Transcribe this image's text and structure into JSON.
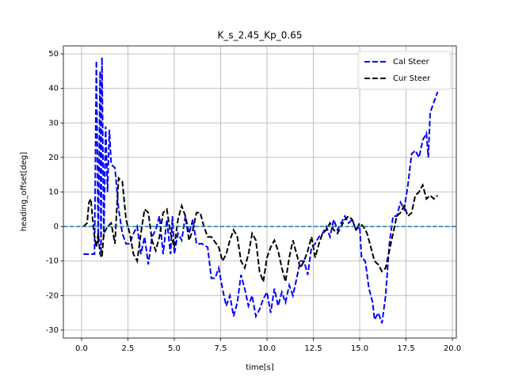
{
  "chart_data": {
    "type": "line",
    "title": "K_s_2.45_Kp_0.65",
    "x_label": "time[s]",
    "y_label": "heading_offset[deg]",
    "xlim": [
      -0.98,
      20.21
    ],
    "ylim": [
      -32.3,
      52.3
    ],
    "xticks": [
      {
        "value": 0,
        "label": "0.0"
      },
      {
        "value": 2.5,
        "label": "2.5"
      },
      {
        "value": 5,
        "label": "5.0"
      },
      {
        "value": 7.5,
        "label": "7.5"
      },
      {
        "value": 10,
        "label": "10.0"
      },
      {
        "value": 12.5,
        "label": "12.5"
      },
      {
        "value": 15,
        "label": "15.0"
      },
      {
        "value": 17.5,
        "label": "17.5"
      },
      {
        "value": 20,
        "label": "20.0"
      }
    ],
    "yticks": [
      -30,
      -20,
      -10,
      0,
      10,
      20,
      30,
      40,
      50
    ],
    "grid": true,
    "legend": "upper right",
    "reference_line": {
      "y": 0,
      "color": "#1f77b4"
    },
    "series": [
      {
        "name": "Cal Steer",
        "color": "#0000ff",
        "x": [
          0.1,
          0.7,
          0.8,
          0.9,
          1.0,
          1.05,
          1.1,
          1.2,
          1.3,
          1.4,
          1.5,
          1.6,
          1.8,
          2.0,
          2.2,
          2.4,
          2.6,
          2.8,
          3.0,
          3.2,
          3.4,
          3.6,
          3.8,
          4.0,
          4.2,
          4.4,
          4.6,
          4.8,
          4.9,
          5.0,
          5.2,
          5.4,
          5.6,
          5.8,
          6.0,
          6.2,
          6.5,
          6.8,
          7.0,
          7.2,
          7.4,
          7.6,
          7.8,
          8.0,
          8.2,
          8.4,
          8.6,
          8.8,
          9.0,
          9.2,
          9.4,
          9.6,
          9.8,
          10.0,
          10.2,
          10.4,
          10.6,
          10.8,
          11.0,
          11.2,
          11.4,
          11.6,
          11.8,
          12.0,
          12.2,
          12.4,
          12.6,
          12.8,
          13.0,
          13.2,
          13.4,
          13.6,
          13.8,
          14.0,
          14.2,
          14.4,
          14.6,
          14.8,
          15.0,
          15.1,
          15.3,
          15.5,
          15.7,
          15.8,
          16.0,
          16.2,
          16.4,
          16.6,
          16.8,
          17.0,
          17.2,
          17.4,
          17.6,
          17.8,
          18.0,
          18.2,
          18.4,
          18.6,
          18.7,
          18.8,
          19.0,
          19.2
        ],
        "values": [
          -8,
          -8,
          48,
          -5,
          45,
          -8,
          49,
          -3,
          29,
          10,
          28,
          18,
          17,
          5,
          -2,
          -5,
          -5,
          -2,
          0,
          -8,
          -3,
          -11,
          -3,
          -1,
          3,
          -8,
          2,
          -8,
          3,
          -8,
          -2,
          -4,
          3,
          -2,
          2,
          -5,
          -5,
          -6,
          -15,
          -15,
          -12,
          -18,
          -23,
          -20,
          -26,
          -22,
          -14,
          -18,
          -23,
          -20,
          -26,
          -24,
          -21,
          -19,
          -25,
          -18,
          -23,
          -19,
          -22,
          -17,
          -20,
          -15,
          -10,
          -10,
          -14,
          -6,
          -5,
          -3,
          -2,
          0,
          -3,
          2,
          -1,
          1,
          3,
          1,
          2,
          -1,
          0,
          -9,
          -10,
          -18,
          -22,
          -27,
          -25,
          -28,
          -20,
          -5,
          3,
          3,
          7,
          5,
          12,
          21,
          22,
          20,
          25,
          27,
          20,
          33,
          36,
          39
        ]
      },
      {
        "name": "Cur Steer",
        "color": "#000000",
        "x": [
          0.1,
          0.3,
          0.4,
          0.5,
          0.6,
          0.7,
          0.8,
          0.9,
          1.0,
          1.1,
          1.2,
          1.4,
          1.6,
          1.8,
          1.9,
          2.0,
          2.2,
          2.4,
          2.6,
          2.8,
          3.0,
          3.2,
          3.4,
          3.6,
          3.8,
          4.0,
          4.2,
          4.4,
          4.6,
          4.8,
          5.0,
          5.2,
          5.4,
          5.6,
          5.8,
          6.0,
          6.2,
          6.4,
          6.6,
          6.8,
          7.0,
          7.4,
          7.6,
          7.8,
          8.0,
          8.2,
          8.4,
          8.6,
          8.8,
          9.0,
          9.2,
          9.4,
          9.6,
          9.8,
          10.0,
          10.2,
          10.4,
          10.6,
          10.8,
          11.0,
          11.2,
          11.4,
          11.6,
          11.8,
          12.0,
          12.2,
          12.4,
          12.6,
          12.8,
          13.0,
          13.2,
          13.4,
          13.6,
          13.8,
          14.0,
          14.2,
          14.4,
          14.6,
          14.8,
          15.0,
          15.2,
          15.4,
          15.6,
          15.8,
          16.0,
          16.2,
          16.4,
          16.6,
          16.8,
          17.0,
          17.2,
          17.4,
          17.6,
          17.8,
          18.0,
          18.2,
          18.4,
          18.6,
          18.8,
          19.0,
          19.2
        ],
        "values": [
          0,
          1,
          7,
          8,
          2,
          -3,
          -6,
          -2,
          -8,
          -9,
          -2,
          0,
          1,
          -5,
          5,
          14,
          13,
          2,
          -2,
          -8,
          -10,
          -2,
          5,
          4,
          -4,
          -7,
          -3,
          4,
          5,
          -2,
          -6,
          2,
          6,
          3,
          -4,
          -1,
          4,
          4,
          0,
          -3,
          -3,
          -6,
          -10,
          -8,
          -4,
          -1,
          -3,
          -10,
          -12,
          -8,
          -2,
          -4,
          -13,
          -16,
          -9,
          -6,
          -4,
          -7,
          -12,
          -16,
          -9,
          -4,
          -8,
          -12,
          -10,
          -7,
          -3,
          -9,
          -5,
          -2,
          -1,
          1,
          -1,
          -2,
          0,
          2,
          3,
          2,
          -1,
          1,
          0,
          -2,
          -6,
          -10,
          -11,
          -13,
          -12,
          -7,
          -2,
          3,
          4,
          6,
          3,
          4,
          9,
          10,
          12,
          8,
          9,
          8,
          9
        ]
      }
    ]
  }
}
